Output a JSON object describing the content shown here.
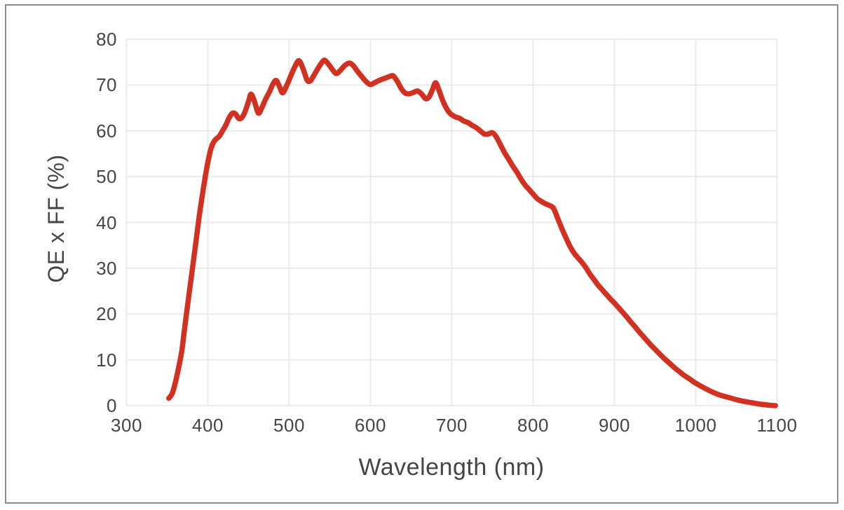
{
  "chart_data": {
    "type": "line",
    "title": "",
    "xlabel": "Wavelength (nm)",
    "ylabel": "QE x FF (%)",
    "xlim": [
      300,
      1100
    ],
    "ylim": [
      0,
      80
    ],
    "x_ticks": [
      300,
      400,
      500,
      600,
      700,
      800,
      900,
      1000,
      1100
    ],
    "y_ticks": [
      0,
      10,
      20,
      30,
      40,
      50,
      60,
      70,
      80
    ],
    "grid": true,
    "legend": false,
    "line_color": "#d23122",
    "series": [
      {
        "name": "QE x FF",
        "points": [
          [
            352,
            1.6
          ],
          [
            356,
            2.6
          ],
          [
            360,
            5.0
          ],
          [
            364,
            8.2
          ],
          [
            368,
            12.0
          ],
          [
            371,
            16.3
          ],
          [
            374,
            20.4
          ],
          [
            377,
            24.5
          ],
          [
            380,
            28.5
          ],
          [
            383,
            32.6
          ],
          [
            386,
            36.7
          ],
          [
            389,
            40.8
          ],
          [
            392,
            44.5
          ],
          [
            395,
            48.0
          ],
          [
            398,
            51.2
          ],
          [
            401,
            54.0
          ],
          [
            404,
            56.2
          ],
          [
            407,
            57.5
          ],
          [
            410,
            58.2
          ],
          [
            414,
            58.8
          ],
          [
            418,
            60.0
          ],
          [
            422,
            61.2
          ],
          [
            426,
            62.8
          ],
          [
            430,
            63.8
          ],
          [
            434,
            63.7
          ],
          [
            438,
            62.7
          ],
          [
            442,
            62.9
          ],
          [
            446,
            64.3
          ],
          [
            450,
            66.4
          ],
          [
            453,
            68.0
          ],
          [
            457,
            66.6
          ],
          [
            462,
            63.9
          ],
          [
            466,
            64.9
          ],
          [
            471,
            66.9
          ],
          [
            476,
            68.6
          ],
          [
            480,
            70.2
          ],
          [
            484,
            71.0
          ],
          [
            488,
            69.7
          ],
          [
            492,
            68.3
          ],
          [
            497,
            69.9
          ],
          [
            502,
            72.0
          ],
          [
            507,
            74.0
          ],
          [
            512,
            75.3
          ],
          [
            517,
            73.6
          ],
          [
            522,
            71.1
          ],
          [
            526,
            70.9
          ],
          [
            531,
            72.3
          ],
          [
            536,
            73.8
          ],
          [
            541,
            75.1
          ],
          [
            544,
            75.4
          ],
          [
            549,
            74.4
          ],
          [
            554,
            73.2
          ],
          [
            558,
            72.5
          ],
          [
            563,
            73.2
          ],
          [
            568,
            74.2
          ],
          [
            574,
            74.8
          ],
          [
            579,
            74.2
          ],
          [
            584,
            73.0
          ],
          [
            590,
            71.7
          ],
          [
            595,
            70.7
          ],
          [
            600,
            70.1
          ],
          [
            606,
            70.6
          ],
          [
            612,
            71.1
          ],
          [
            618,
            71.5
          ],
          [
            624,
            71.9
          ],
          [
            628,
            72.0
          ],
          [
            633,
            70.8
          ],
          [
            638,
            69.2
          ],
          [
            643,
            68.2
          ],
          [
            648,
            68.1
          ],
          [
            653,
            68.4
          ],
          [
            658,
            68.7
          ],
          [
            663,
            68.0
          ],
          [
            668,
            67.0
          ],
          [
            672,
            67.4
          ],
          [
            676,
            68.9
          ],
          [
            680,
            70.5
          ],
          [
            684,
            69.0
          ],
          [
            688,
            67.0
          ],
          [
            692,
            65.4
          ],
          [
            696,
            64.2
          ],
          [
            700,
            63.5
          ],
          [
            705,
            63.0
          ],
          [
            710,
            62.7
          ],
          [
            715,
            62.1
          ],
          [
            720,
            61.8
          ],
          [
            725,
            61.2
          ],
          [
            730,
            60.7
          ],
          [
            735,
            60.0
          ],
          [
            740,
            59.3
          ],
          [
            745,
            59.3
          ],
          [
            750,
            59.6
          ],
          [
            755,
            58.6
          ],
          [
            760,
            56.9
          ],
          [
            765,
            55.2
          ],
          [
            770,
            53.8
          ],
          [
            775,
            52.3
          ],
          [
            780,
            51.0
          ],
          [
            785,
            49.5
          ],
          [
            790,
            48.2
          ],
          [
            795,
            47.2
          ],
          [
            800,
            46.2
          ],
          [
            805,
            45.2
          ],
          [
            810,
            44.6
          ],
          [
            815,
            44.1
          ],
          [
            820,
            43.7
          ],
          [
            825,
            43.1
          ],
          [
            830,
            41.0
          ],
          [
            835,
            38.8
          ],
          [
            840,
            36.8
          ],
          [
            845,
            34.9
          ],
          [
            850,
            33.4
          ],
          [
            855,
            32.3
          ],
          [
            860,
            31.3
          ],
          [
            865,
            30.1
          ],
          [
            870,
            28.7
          ],
          [
            875,
            27.5
          ],
          [
            880,
            26.3
          ],
          [
            885,
            25.3
          ],
          [
            890,
            24.3
          ],
          [
            895,
            23.3
          ],
          [
            900,
            22.4
          ],
          [
            905,
            21.4
          ],
          [
            910,
            20.4
          ],
          [
            915,
            19.4
          ],
          [
            920,
            18.3
          ],
          [
            925,
            17.3
          ],
          [
            930,
            16.2
          ],
          [
            935,
            15.2
          ],
          [
            940,
            14.2
          ],
          [
            945,
            13.2
          ],
          [
            950,
            12.3
          ],
          [
            955,
            11.4
          ],
          [
            960,
            10.5
          ],
          [
            965,
            9.7
          ],
          [
            970,
            8.9
          ],
          [
            975,
            8.1
          ],
          [
            980,
            7.4
          ],
          [
            985,
            6.7
          ],
          [
            990,
            6.1
          ],
          [
            995,
            5.5
          ],
          [
            1000,
            4.9
          ],
          [
            1010,
            3.9
          ],
          [
            1020,
            3.0
          ],
          [
            1030,
            2.3
          ],
          [
            1040,
            1.8
          ],
          [
            1050,
            1.3
          ],
          [
            1060,
            0.9
          ],
          [
            1070,
            0.6
          ],
          [
            1080,
            0.3
          ],
          [
            1090,
            0.1
          ],
          [
            1098,
            0.0
          ]
        ]
      }
    ]
  },
  "colors": {
    "accent": "#d23122",
    "text": "#4a4343",
    "grid": "#e9e9e9",
    "frame": "#8d8d8d",
    "background": "#ffffff"
  }
}
